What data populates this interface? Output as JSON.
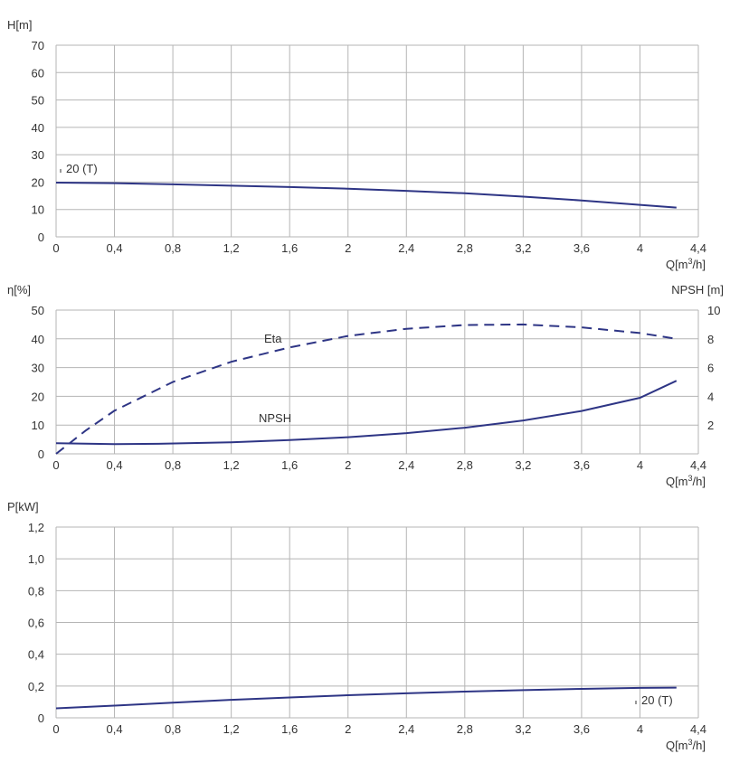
{
  "chart_data": [
    {
      "type": "line",
      "ylabel": "H[m]",
      "xlabel": "Q[m³/h]",
      "xlim": [
        0,
        4.4
      ],
      "ylim": [
        0,
        70
      ],
      "x_ticks": [
        "0",
        "0,4",
        "0,8",
        "1,2",
        "1,6",
        "2",
        "2,4",
        "2,8",
        "3,2",
        "3,6",
        "4",
        "4,4"
      ],
      "y_ticks": [
        "0",
        "10",
        "20",
        "30",
        "40",
        "50",
        "60",
        "70"
      ],
      "grid": true,
      "series": [
        {
          "name": "20 (T)",
          "color": "#2e3585",
          "x": [
            0,
            0.4,
            0.8,
            1.2,
            1.6,
            2.0,
            2.4,
            2.8,
            3.2,
            3.6,
            4.0,
            4.25
          ],
          "y": [
            19.8,
            19.6,
            19.2,
            18.7,
            18.2,
            17.6,
            16.8,
            15.9,
            14.7,
            13.3,
            11.7,
            10.7
          ]
        }
      ]
    },
    {
      "type": "line",
      "ylabel": "η[%]",
      "y2label": "NPSH [m]",
      "xlabel": "Q[m³/h]",
      "xlim": [
        0,
        4.4
      ],
      "ylim": [
        0,
        50
      ],
      "y2lim": [
        0,
        10
      ],
      "x_ticks": [
        "0",
        "0,4",
        "0,8",
        "1,2",
        "1,6",
        "2",
        "2,4",
        "2,8",
        "3,2",
        "3,6",
        "4",
        "4,4"
      ],
      "y_ticks": [
        "0",
        "10",
        "20",
        "30",
        "40",
        "50"
      ],
      "y2_ticks": [
        "2",
        "4",
        "6",
        "8",
        "10"
      ],
      "grid": true,
      "series": [
        {
          "name": "Eta",
          "axis": "left",
          "style": "dashed",
          "color": "#2e3585",
          "x": [
            0,
            0.2,
            0.4,
            0.8,
            1.2,
            1.6,
            2.0,
            2.4,
            2.8,
            3.2,
            3.6,
            4.0,
            4.25
          ],
          "y": [
            0,
            8,
            15,
            25,
            32,
            37,
            41,
            43.5,
            44.8,
            45,
            44,
            42,
            40
          ]
        },
        {
          "name": "NPSH",
          "axis": "left",
          "style": "solid",
          "color": "#2e3585",
          "x": [
            0,
            0.4,
            0.7,
            1.2,
            1.6,
            2.0,
            2.4,
            2.8,
            3.2,
            3.6,
            4.0,
            4.25
          ],
          "y": [
            3.7,
            3.4,
            3.5,
            4.0,
            4.8,
            5.8,
            7.2,
            9.1,
            11.6,
            14.9,
            19.5,
            25.4
          ]
        }
      ]
    },
    {
      "type": "line",
      "ylabel": "P[kW]",
      "xlabel": "Q[m³/h]",
      "xlim": [
        0,
        4.4
      ],
      "ylim": [
        0,
        1.2
      ],
      "x_ticks": [
        "0",
        "0,4",
        "0,8",
        "1,2",
        "1,6",
        "2",
        "2,4",
        "2,8",
        "3,2",
        "3,6",
        "4",
        "4,4"
      ],
      "y_ticks": [
        "0",
        "0,2",
        "0,4",
        "0,6",
        "0,8",
        "1,0",
        "1,2"
      ],
      "grid": true,
      "series": [
        {
          "name": "20 (T)",
          "color": "#2e3585",
          "x": [
            0,
            0.4,
            0.8,
            1.2,
            1.6,
            2.0,
            2.4,
            2.8,
            3.2,
            3.6,
            4.0,
            4.25
          ],
          "y": [
            0.06,
            0.077,
            0.095,
            0.113,
            0.128,
            0.142,
            0.154,
            0.165,
            0.174,
            0.182,
            0.188,
            0.19
          ]
        }
      ]
    }
  ]
}
